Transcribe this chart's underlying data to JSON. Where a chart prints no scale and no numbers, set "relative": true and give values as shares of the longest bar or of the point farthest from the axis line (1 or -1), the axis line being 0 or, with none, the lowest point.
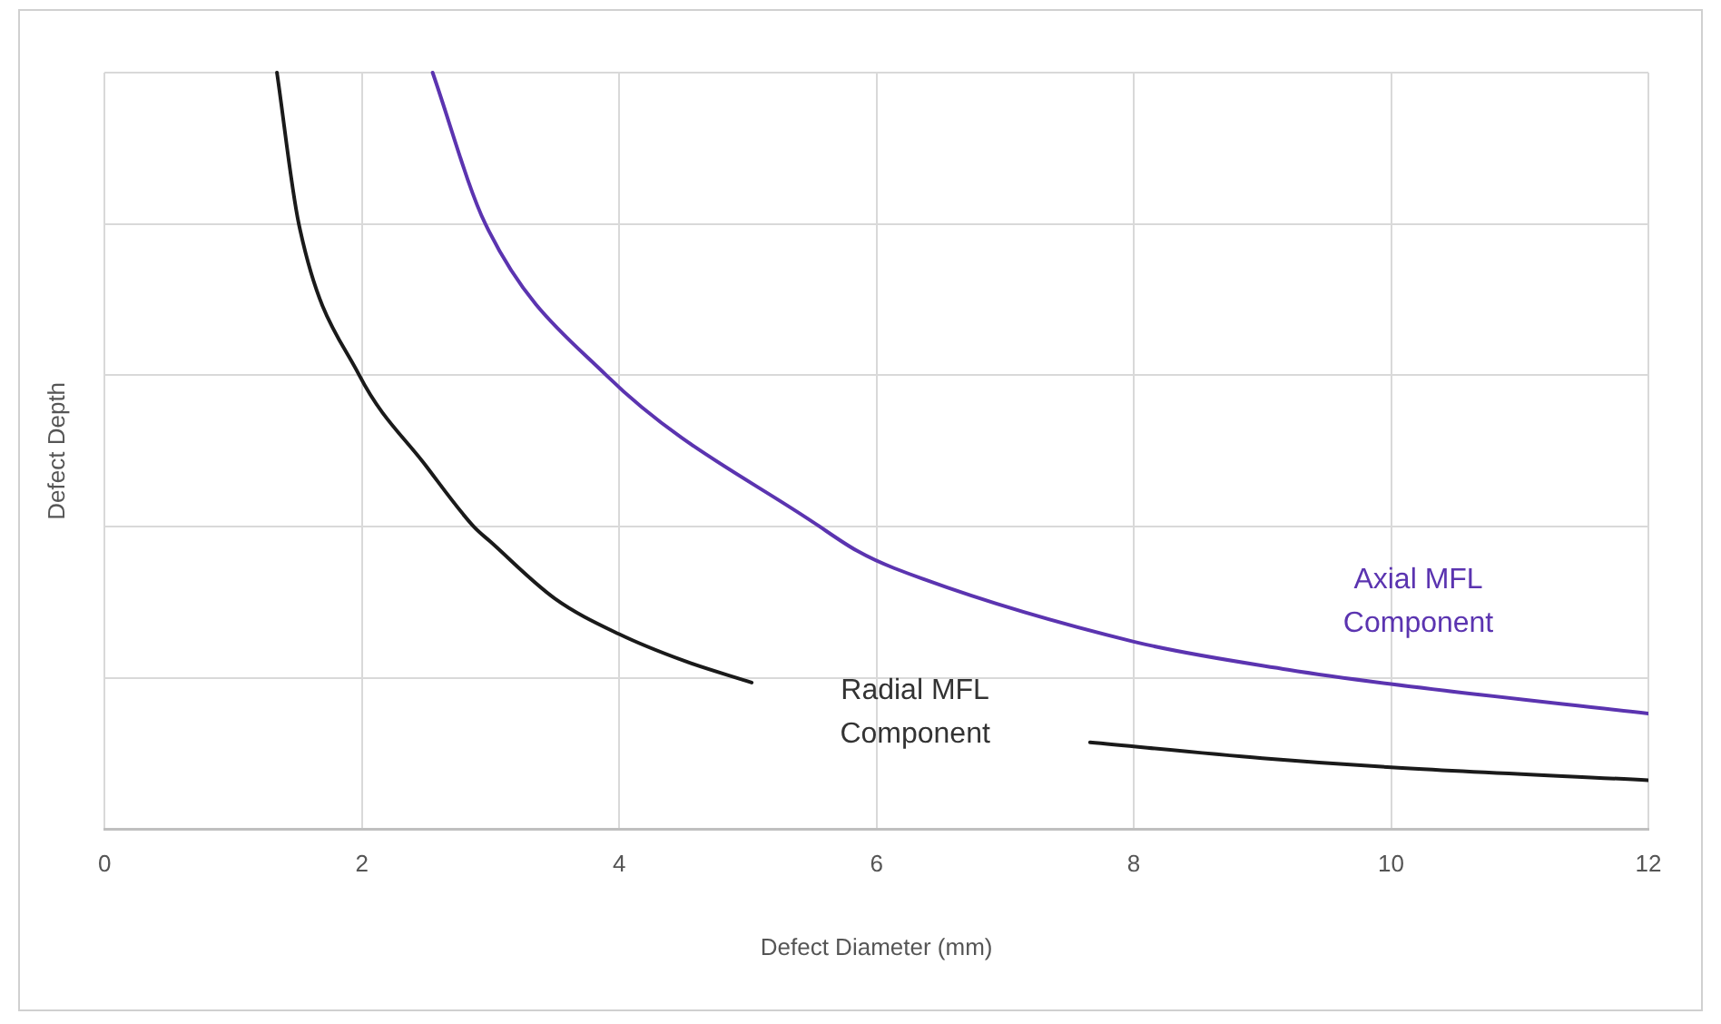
{
  "chart_data": {
    "type": "line",
    "relative": true,
    "xlabel": "Defect Diameter (mm)",
    "ylabel": "Defect Depth",
    "xlim": [
      0,
      12
    ],
    "xticks": [
      0,
      2,
      4,
      6,
      8,
      10,
      12
    ],
    "grid": true,
    "legend": false,
    "marker": "none",
    "line_style": "solid",
    "series": [
      {
        "name": "Radial MFL\nComponent",
        "color": "#1a1a1a",
        "x": [
          1.34,
          1.51,
          1.98,
          2.5,
          2.87,
          3,
          3.5,
          4,
          4.5,
          5.03,
          6.3,
          7.66,
          9,
          10,
          12
        ],
        "values": [
          1,
          0.8,
          0.6,
          0.48,
          0.4,
          0.38,
          0.305,
          0.258,
          0.223,
          0.194,
          null,
          0.115,
          0.094,
          0.082,
          0.065
        ]
      },
      {
        "name": "Axial MFL\nComponent",
        "color": "#5b34b0",
        "x": [
          2.55,
          2.96,
          3.9,
          5.56,
          5.85,
          6.14,
          8,
          9.2,
          10,
          12
        ],
        "values": [
          1,
          0.8,
          0.6,
          0.4,
          0.368,
          0.345,
          0.248,
          0.211,
          0.192,
          0.153
        ]
      }
    ]
  }
}
